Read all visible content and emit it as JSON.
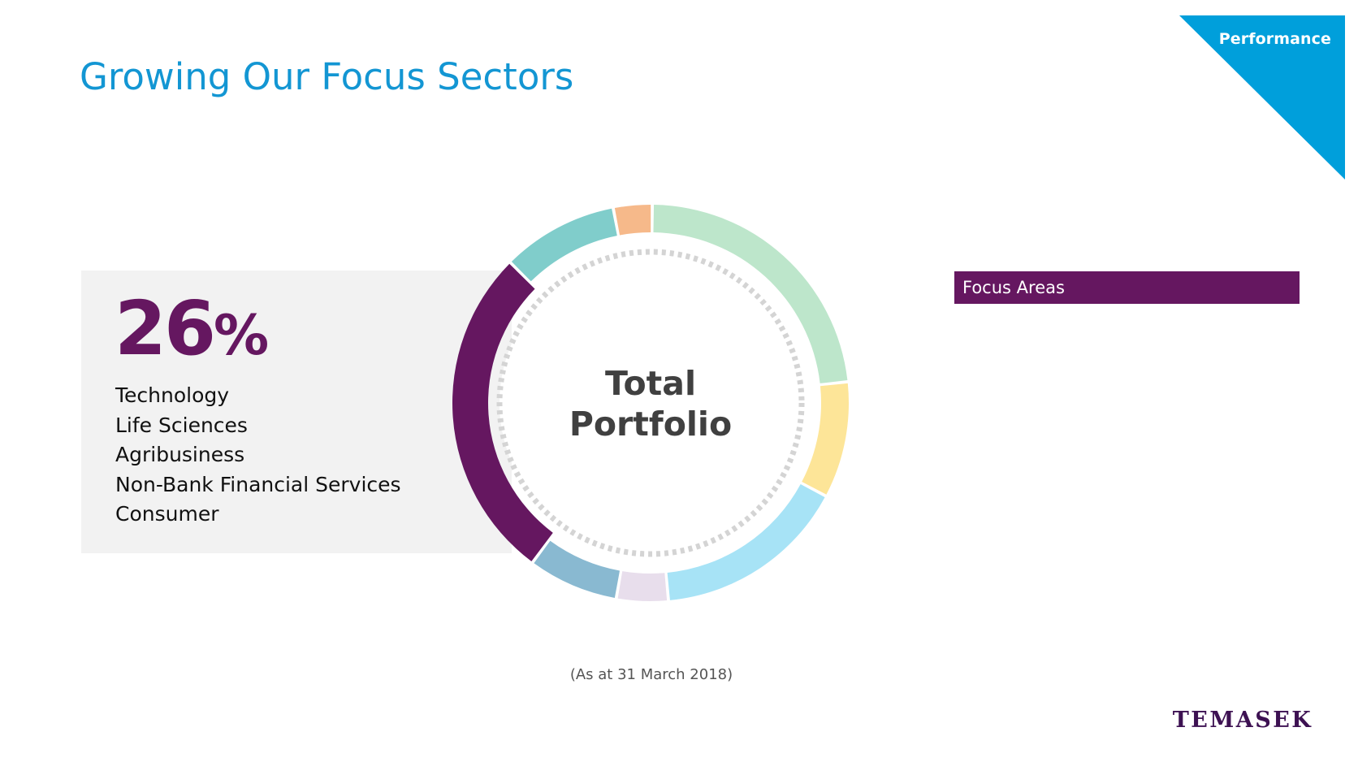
{
  "header": {
    "title": "Growing Our Focus Sectors",
    "section_tab": "Performance"
  },
  "focus_panel": {
    "percent_value": "26",
    "percent_sign": "%",
    "sectors": [
      "Technology",
      "Life Sciences",
      "Agribusiness",
      "Non-Bank Financial Services",
      "Consumer"
    ]
  },
  "legend": {
    "header": "Focus Areas"
  },
  "footnote": "(As at 31 March 2018)",
  "brand": {
    "logo_text": "TEMASEK",
    "logo_color": "#3d1152"
  },
  "colors": {
    "title": "#1396d3",
    "section_tab": "#009fdb",
    "focus_purple": "#651760",
    "panel_bg": "#f2f2f2"
  },
  "chart_data": {
    "type": "donut",
    "center_label_lines": [
      "Total",
      "Portfolio"
    ],
    "unit": "%",
    "segments": [
      {
        "value": 22,
        "color": "#bde6cb"
      },
      {
        "value": 9,
        "color": "#fde598"
      },
      {
        "value": 15,
        "color": "#a7e3f6"
      },
      {
        "value": 4,
        "color": "#e8deec"
      },
      {
        "value": 7,
        "color": "#89b9d1"
      },
      {
        "value": 26,
        "color": "#651760",
        "highlighted": true
      },
      {
        "value": 9,
        "color": "#80cdcb"
      },
      {
        "value": 3,
        "color": "#f6b98a"
      }
    ]
  }
}
